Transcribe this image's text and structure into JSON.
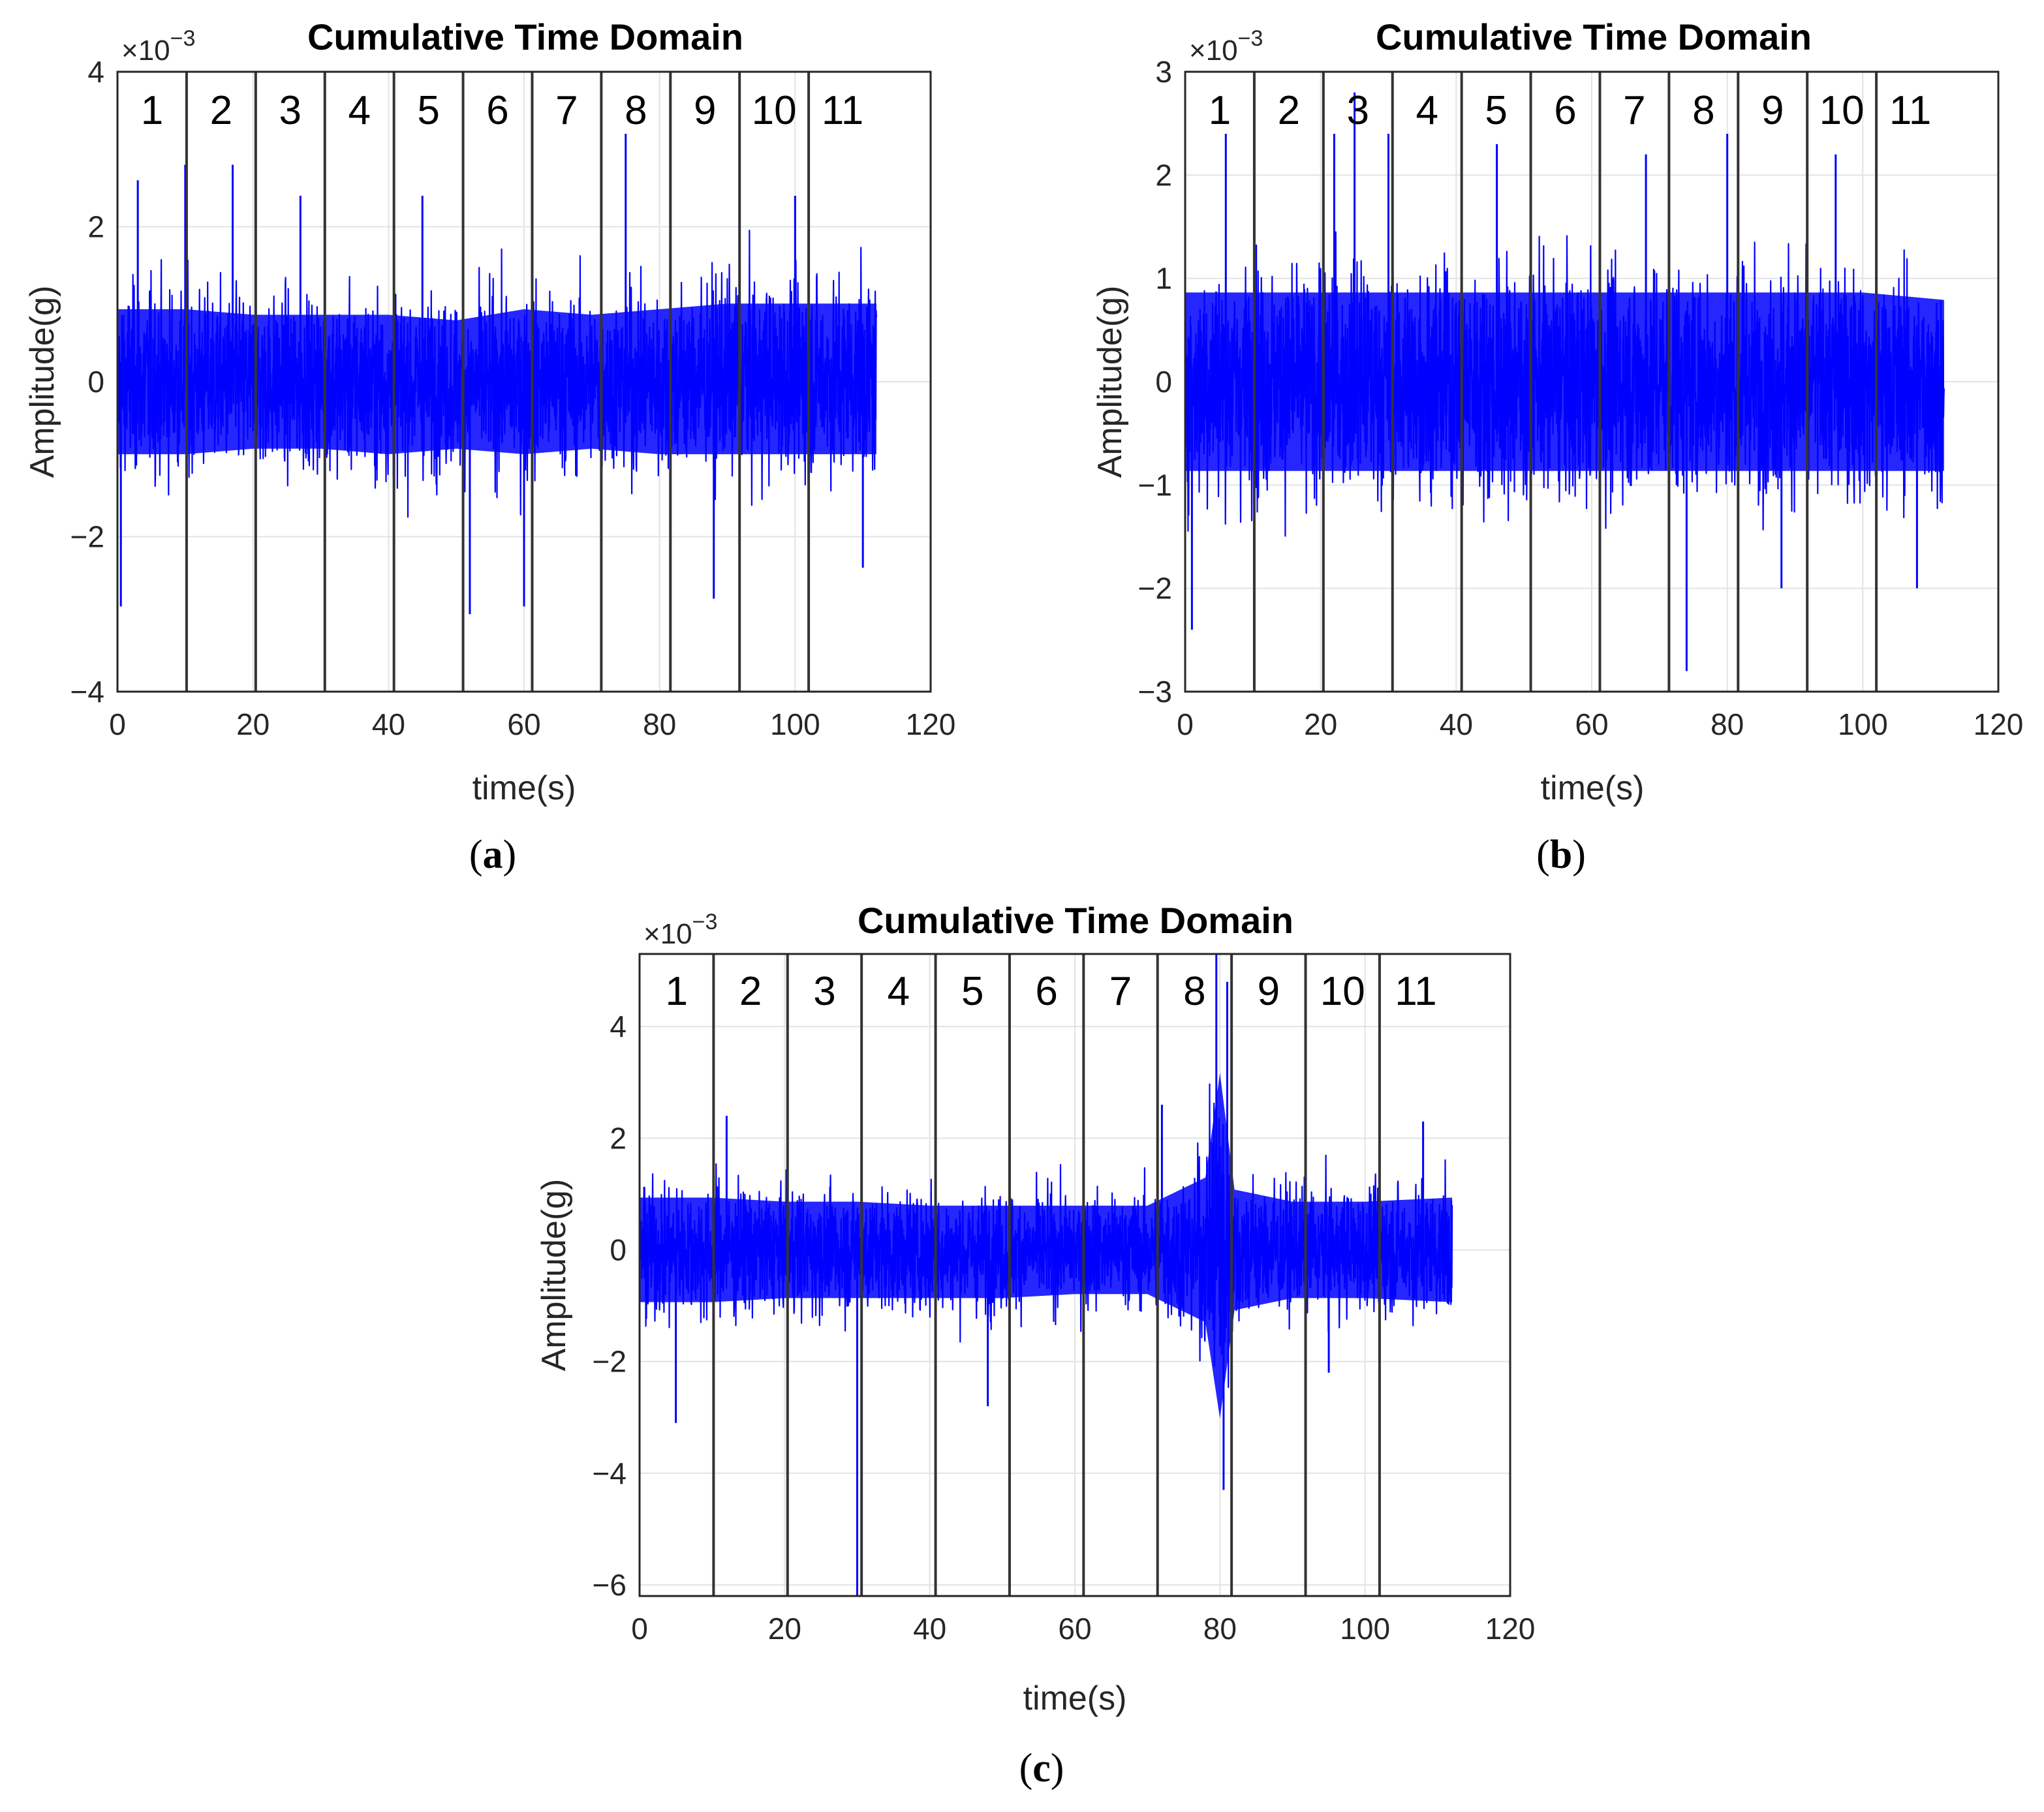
{
  "chart_data": [
    {
      "panel": "a",
      "type": "line",
      "title": "Cumulative Time Domain",
      "xlabel": "time(s)",
      "ylabel": "Amplitude(g)",
      "y_multiplier": "×10",
      "y_multiplier_exp": "−3",
      "xlim": [
        0,
        120
      ],
      "ylim": [
        -4,
        4
      ],
      "xticks": [
        0,
        20,
        40,
        60,
        80,
        100,
        120
      ],
      "yticks": [
        -4,
        -2,
        0,
        2,
        4
      ],
      "ytick_labels": [
        "−4",
        "−2",
        "0",
        "2",
        "4"
      ],
      "grid": true,
      "segment_boundaries": [
        10.2,
        20.4,
        30.6,
        40.8,
        51.0,
        61.2,
        71.4,
        81.6,
        91.8,
        102.0
      ],
      "segment_labels": [
        "1",
        "2",
        "3",
        "4",
        "5",
        "6",
        "7",
        "8",
        "9",
        "10",
        "11"
      ],
      "signal_end": 112,
      "series": [
        {
          "color": "#0000ff",
          "description_values": {
            "band_upper_x": [
              0,
              10,
              20,
              30,
              40,
              50,
              60,
              70,
              80,
              90,
              100,
              112
            ],
            "band_upper_y": [
              1.3,
              1.3,
              1.2,
              1.2,
              1.2,
              1.1,
              1.3,
              1.2,
              1.3,
              1.4,
              1.4,
              1.4
            ],
            "band_lower_y": [
              -1.3,
              -1.3,
              -1.2,
              -1.2,
              -1.3,
              -1.2,
              -1.3,
              -1.2,
              -1.3,
              -1.3,
              -1.3,
              -1.3
            ],
            "peak_x": [
              0.5,
              3,
              10,
              17,
              27,
              45,
              52,
              60,
              75,
              88,
              100,
              110
            ],
            "peak_y": [
              -2.9,
              2.6,
              2.8,
              2.8,
              2.4,
              2.4,
              -3.0,
              -2.9,
              3.2,
              -2.8,
              2.4,
              -2.4
            ]
          }
        }
      ]
    },
    {
      "panel": "b",
      "type": "line",
      "title": "Cumulative Time Domain",
      "xlabel": "time(s)",
      "ylabel": "Amplitude(g)",
      "y_multiplier": "×10",
      "y_multiplier_exp": "−3",
      "xlim": [
        0,
        120
      ],
      "ylim": [
        -3,
        3
      ],
      "xticks": [
        0,
        20,
        40,
        60,
        80,
        100,
        120
      ],
      "yticks": [
        -3,
        -2,
        -1,
        0,
        1,
        2,
        3
      ],
      "ytick_labels": [
        "−3",
        "−2",
        "−1",
        "0",
        "1",
        "2",
        "3"
      ],
      "grid": true,
      "segment_boundaries": [
        10.2,
        20.4,
        30.6,
        40.8,
        51.0,
        61.2,
        71.4,
        81.6,
        91.8,
        102.0
      ],
      "segment_labels": [
        "1",
        "2",
        "3",
        "4",
        "5",
        "6",
        "7",
        "8",
        "9",
        "10",
        "11"
      ],
      "signal_end": 112,
      "series": [
        {
          "color": "#0000ff",
          "description_values": {
            "band_upper_x": [
              0,
              10,
              20,
              30,
              40,
              50,
              60,
              70,
              80,
              90,
              100,
              112
            ],
            "band_upper_y": [
              1.2,
              1.2,
              1.2,
              1.2,
              1.2,
              1.2,
              1.2,
              1.2,
              1.2,
              1.2,
              1.2,
              1.1
            ],
            "band_lower_y": [
              -1.2,
              -1.2,
              -1.2,
              -1.2,
              -1.2,
              -1.2,
              -1.2,
              -1.2,
              -1.2,
              -1.2,
              -1.2,
              -1.2
            ],
            "peak_x": [
              1,
              6,
              22,
              25,
              30,
              46,
              68,
              74,
              80,
              88,
              96,
              108
            ],
            "peak_y": [
              -2.4,
              2.4,
              2.4,
              2.8,
              2.4,
              2.3,
              2.2,
              -2.8,
              2.4,
              -2.0,
              2.2,
              -2.0
            ]
          }
        }
      ]
    },
    {
      "panel": "c",
      "type": "line",
      "title": "Cumulative Time Domain",
      "xlabel": "time(s)",
      "ylabel": "Amplitude(g)",
      "y_multiplier": "×10",
      "y_multiplier_exp": "−3",
      "xlim": [
        0,
        120
      ],
      "ylim": [
        -6.2,
        5.3
      ],
      "xticks": [
        0,
        20,
        40,
        60,
        80,
        100,
        120
      ],
      "yticks": [
        -6,
        -4,
        -2,
        0,
        2,
        4
      ],
      "ytick_labels": [
        "−6",
        "−4",
        "−2",
        "0",
        "2",
        "4"
      ],
      "grid": true,
      "segment_boundaries": [
        10.2,
        20.4,
        30.6,
        40.8,
        51.0,
        61.2,
        71.4,
        81.6,
        91.8,
        102.0
      ],
      "segment_labels": [
        "1",
        "2",
        "3",
        "4",
        "5",
        "6",
        "7",
        "8",
        "9",
        "10",
        "11"
      ],
      "signal_end": 112,
      "series": [
        {
          "color": "#0000ff",
          "description_values": {
            "band_upper_x": [
              0,
              10,
              20,
              30,
              40,
              50,
              60,
              70,
              78,
              80,
              82,
              90,
              100,
              112
            ],
            "band_upper_y": [
              1.3,
              1.3,
              1.2,
              1.2,
              1.1,
              1.1,
              1.1,
              1.1,
              1.8,
              4.4,
              1.5,
              1.2,
              1.2,
              1.3
            ],
            "band_lower_y": [
              -1.3,
              -1.3,
              -1.2,
              -1.2,
              -1.2,
              -1.2,
              -1.1,
              -1.1,
              -1.8,
              -4.2,
              -1.5,
              -1.2,
              -1.2,
              -1.3
            ],
            "peak_x": [
              5,
              12,
              30,
              48,
              72,
              79.5,
              80.5,
              81,
              95,
              108
            ],
            "peak_y": [
              -3.1,
              2.4,
              -6.2,
              -2.8,
              2.6,
              5.3,
              -4.3,
              4.8,
              -2.2,
              2.3
            ]
          }
        }
      ]
    }
  ],
  "captions": [
    "a",
    "b",
    "c"
  ]
}
